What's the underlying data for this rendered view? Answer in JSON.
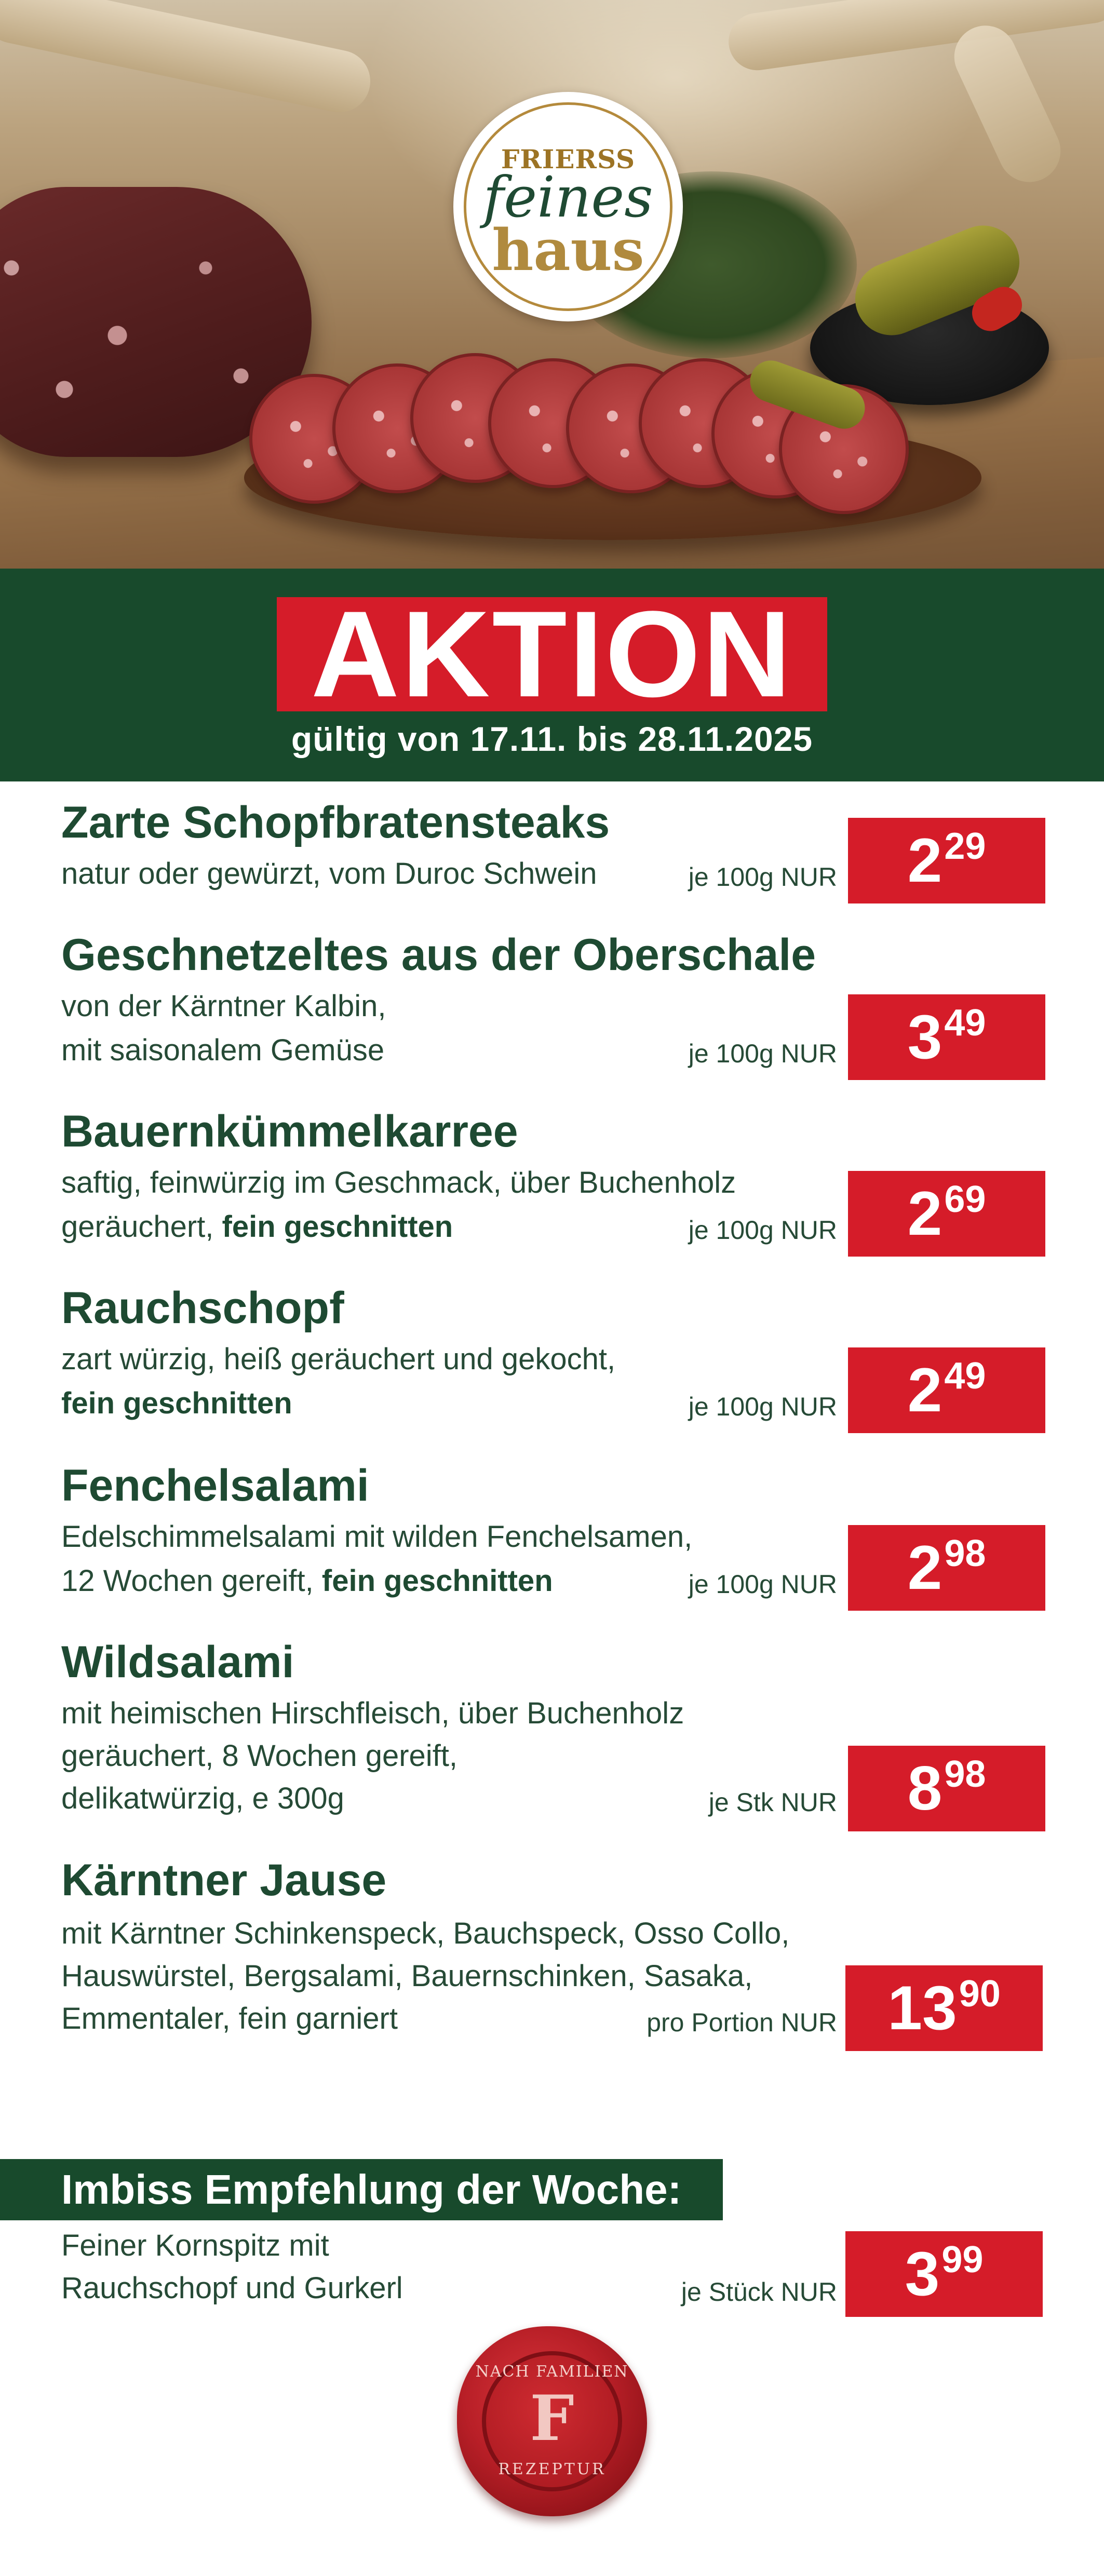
{
  "logo": {
    "brand": "FRIERSS",
    "line1": "feines",
    "line2": "haus"
  },
  "banner": {
    "headline": "AKTION",
    "validity": "gültig von 17.11. bis 28.11.2025"
  },
  "products": [
    {
      "title": "Zarte Schopfbratensteaks",
      "lines": [
        {
          "text": "natur oder gewürzt, vom Duroc Schwein",
          "bold": ""
        }
      ],
      "unit": "je 100g NUR",
      "price_eur": "2",
      "price_ct": "29"
    },
    {
      "title": "Geschnetzeltes aus der Oberschale",
      "lines": [
        {
          "text": "von der Kärntner Kalbin,",
          "bold": ""
        },
        {
          "text": "mit saisonalem Gemüse",
          "bold": ""
        }
      ],
      "unit": "je 100g NUR",
      "price_eur": "3",
      "price_ct": "49"
    },
    {
      "title": "Bauernkümmelkarree",
      "lines": [
        {
          "text": "saftig, feinwürzig im Geschmack, über Buchenholz",
          "bold": ""
        },
        {
          "text": "geräuchert, ",
          "bold": "fein geschnitten"
        }
      ],
      "unit": "je 100g NUR",
      "price_eur": "2",
      "price_ct": "69"
    },
    {
      "title": "Rauchschopf",
      "lines": [
        {
          "text": "zart würzig, heiß geräuchert und gekocht,",
          "bold": ""
        },
        {
          "text": "",
          "bold": "fein geschnitten"
        }
      ],
      "unit": "je 100g NUR",
      "price_eur": "2",
      "price_ct": "49"
    },
    {
      "title": "Fenchelsalami",
      "lines": [
        {
          "text": "Edelschimmelsalami mit wilden Fenchelsamen,",
          "bold": ""
        },
        {
          "text": "12 Wochen gereift, ",
          "bold": "fein geschnitten"
        }
      ],
      "unit": "je 100g NUR",
      "price_eur": "2",
      "price_ct": "98"
    },
    {
      "title": "Wildsalami",
      "lines": [
        {
          "text": "mit heimischen Hirschfleisch, über Buchenholz",
          "bold": ""
        },
        {
          "text": "geräuchert, 8 Wochen gereift,",
          "bold": ""
        },
        {
          "text": "delikatwürzig, e 300g",
          "bold": ""
        }
      ],
      "unit": "je Stk NUR",
      "price_eur": "8",
      "price_ct": "98"
    },
    {
      "title": "Kärntner Jause",
      "lines": [
        {
          "text": "mit Kärntner Schinkenspeck, Bauchspeck, Osso Collo,",
          "bold": ""
        },
        {
          "text": "Hauswürstel, Bergsalami, Bauernschinken, Sasaka,",
          "bold": ""
        },
        {
          "text": "Emmentaler, fein garniert",
          "bold": ""
        }
      ],
      "unit": "pro Portion NUR",
      "price_eur": "13",
      "price_ct": "90"
    }
  ],
  "imbiss": {
    "heading": "Imbiss Empfehlung der Woche:",
    "lines": [
      "Feiner Kornspitz mit",
      "Rauchschopf und Gurkerl"
    ],
    "unit": "je Stück NUR",
    "price_eur": "3",
    "price_ct": "99"
  },
  "seal": {
    "top": "NACH FAMILIEN",
    "letter": "F",
    "bottom": "REZEPTUR"
  },
  "colors": {
    "green": "#184a2c",
    "red": "#d51c29",
    "text_green": "#1e4a32"
  }
}
